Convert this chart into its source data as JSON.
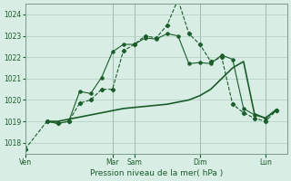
{
  "title": "",
  "xlabel": "Pression niveau de la mer( hPa )",
  "ylabel": "",
  "ylim": [
    1017.5,
    1024.5
  ],
  "yticks": [
    1018,
    1019,
    1020,
    1021,
    1022,
    1023,
    1024
  ],
  "background_color": "#d8ede4",
  "grid_color": "#b0ccc0",
  "line_color": "#1a5c2a",
  "vline_color": "#7a9a8a",
  "day_labels": [
    "Ven",
    "Mar",
    "Sam",
    "Dim",
    "Lun"
  ],
  "day_positions": [
    0,
    8,
    10,
    16,
    22
  ],
  "series1_x": [
    0,
    2,
    3,
    4,
    5,
    6,
    7,
    8,
    9,
    10,
    11,
    12,
    13,
    14,
    15,
    16,
    17,
    18,
    19,
    20,
    21,
    22,
    23
  ],
  "series1_y": [
    1017.7,
    1019.0,
    1018.9,
    1019.0,
    1019.85,
    1020.0,
    1020.5,
    1020.5,
    1022.3,
    1022.6,
    1023.0,
    1022.9,
    1023.5,
    1024.7,
    1023.1,
    1022.6,
    1021.8,
    1022.0,
    1019.8,
    1019.4,
    1019.15,
    1019.0,
    1019.5
  ],
  "series2_x": [
    2,
    3,
    4,
    5,
    6,
    7,
    8,
    9,
    10,
    11,
    12,
    13,
    14,
    15,
    16,
    17,
    18,
    19,
    20,
    21,
    22,
    23
  ],
  "series2_y": [
    1019.0,
    1018.9,
    1019.0,
    1020.4,
    1020.3,
    1021.05,
    1022.25,
    1022.6,
    1022.6,
    1022.9,
    1022.85,
    1023.1,
    1023.0,
    1021.7,
    1021.75,
    1021.7,
    1022.1,
    1021.9,
    1019.6,
    1019.3,
    1019.15,
    1019.5
  ],
  "series3_x": [
    2,
    3,
    4,
    5,
    6,
    7,
    8,
    9,
    10,
    11,
    12,
    13,
    14,
    15,
    16,
    17,
    18,
    19,
    20,
    21,
    22,
    23
  ],
  "series3_y": [
    1019.0,
    1019.0,
    1019.1,
    1019.2,
    1019.3,
    1019.4,
    1019.5,
    1019.6,
    1019.65,
    1019.7,
    1019.75,
    1019.8,
    1019.9,
    1020.0,
    1020.2,
    1020.5,
    1021.0,
    1021.5,
    1021.8,
    1019.35,
    1019.15,
    1019.55
  ]
}
